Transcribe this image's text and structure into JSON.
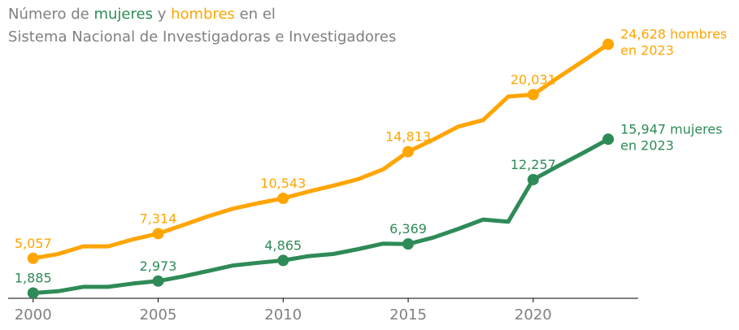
{
  "title": {
    "prefix": "Número de",
    "women_word": "mujeres",
    "connector": "y",
    "men_word": "hombres",
    "suffix": "en el",
    "line2": "Sistema Nacional de Investigadoras e Investigadores"
  },
  "colors": {
    "women": "#2e8b57",
    "men": "#ffa500",
    "title": "#808080",
    "axis": "#000000",
    "ticks": "#808080"
  },
  "chart_data": {
    "type": "line",
    "x": [
      2000,
      2001,
      2002,
      2003,
      2004,
      2005,
      2006,
      2007,
      2008,
      2009,
      2010,
      2011,
      2012,
      2013,
      2014,
      2015,
      2016,
      2017,
      2018,
      2019,
      2020,
      2021,
      2022,
      2023
    ],
    "xlim": [
      1999,
      2024.2
    ],
    "ylim": [
      1400,
      26600
    ],
    "xticks": [
      "2000",
      "2005",
      "2010",
      "2015",
      "2020"
    ],
    "grid": false,
    "series": [
      {
        "key": "men",
        "values": [
          5057,
          5450,
          6150,
          6150,
          6800,
          7314,
          8100,
          8900,
          9600,
          10100,
          10543,
          11150,
          11700,
          12300,
          13200,
          14813,
          15900,
          17100,
          17700,
          19850,
          20031,
          21600,
          23100,
          24628
        ],
        "markers": [
          {
            "year": 2000,
            "value": 5057,
            "label": "5,057"
          },
          {
            "year": 2005,
            "value": 7314,
            "label": "7,314"
          },
          {
            "year": 2010,
            "value": 10543,
            "label": "10,543"
          },
          {
            "year": 2015,
            "value": 14813,
            "label": "14,813"
          },
          {
            "year": 2020,
            "value": 20031,
            "label": "20,031"
          },
          {
            "year": 2023,
            "value": 24628,
            "label": ""
          }
        ],
        "end_label": [
          "24,628 hombres",
          "en 2023"
        ]
      },
      {
        "key": "women",
        "values": [
          1885,
          2050,
          2450,
          2450,
          2750,
          2973,
          3400,
          3900,
          4400,
          4650,
          4865,
          5250,
          5450,
          5900,
          6400,
          6369,
          6950,
          7750,
          8600,
          8400,
          12257,
          13500,
          14700,
          15947
        ],
        "markers": [
          {
            "year": 2000,
            "value": 1885,
            "label": "1,885"
          },
          {
            "year": 2005,
            "value": 2973,
            "label": "2,973"
          },
          {
            "year": 2010,
            "value": 4865,
            "label": "4,865"
          },
          {
            "year": 2015,
            "value": 6369,
            "label": "6,369"
          },
          {
            "year": 2020,
            "value": 12257,
            "label": "12,257"
          },
          {
            "year": 2023,
            "value": 15947,
            "label": ""
          }
        ],
        "end_label": [
          "15,947 mujeres",
          "en 2023"
        ]
      }
    ]
  }
}
